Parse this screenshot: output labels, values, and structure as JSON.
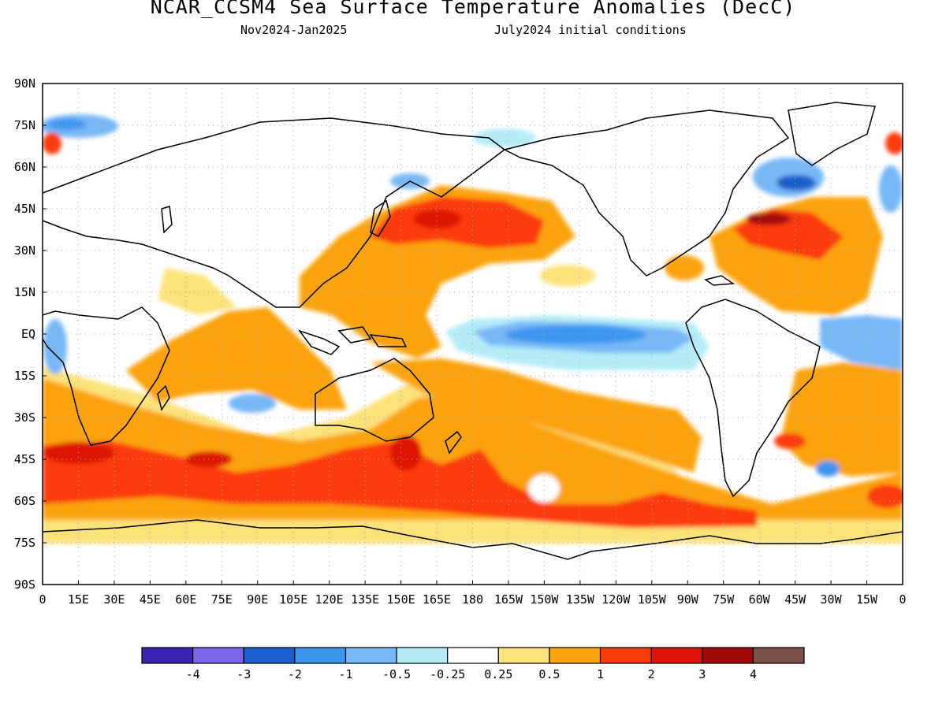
{
  "title": "NCAR_CCSM4 Sea Surface Temperature Anomalies (DecC)",
  "subtitle_left": "Nov2024-Jan2025",
  "subtitle_right": "July2024 initial conditions",
  "lat_labels": [
    "90N",
    "75N",
    "60N",
    "45N",
    "30N",
    "15N",
    "EQ",
    "15S",
    "30S",
    "45S",
    "60S",
    "75S",
    "90S"
  ],
  "lon_labels": [
    "0",
    "15E",
    "30E",
    "45E",
    "60E",
    "75E",
    "90E",
    "105E",
    "120E",
    "135E",
    "150E",
    "165E",
    "180",
    "165W",
    "150W",
    "135W",
    "120W",
    "105W",
    "90W",
    "75W",
    "60W",
    "45W",
    "30W",
    "15W",
    "0"
  ],
  "colorbar": {
    "colors": [
      "#3a25b2",
      "#7a66e8",
      "#1a5fcc",
      "#3c96f0",
      "#78b8f7",
      "#b4ecf8",
      "#ffffff",
      "#fce27a",
      "#fba30a",
      "#fb3b0a",
      "#dc1406",
      "#a10a08",
      "#7a5048"
    ],
    "labels": [
      "-4",
      "-3",
      "-2",
      "-1",
      "-0.5",
      "-0.25",
      "0.25",
      "0.5",
      "1",
      "2",
      "3",
      "4"
    ]
  },
  "colors": {
    "land_outline": "#000000",
    "grid": "#aaaaaa",
    "background": "#ffffff"
  }
}
